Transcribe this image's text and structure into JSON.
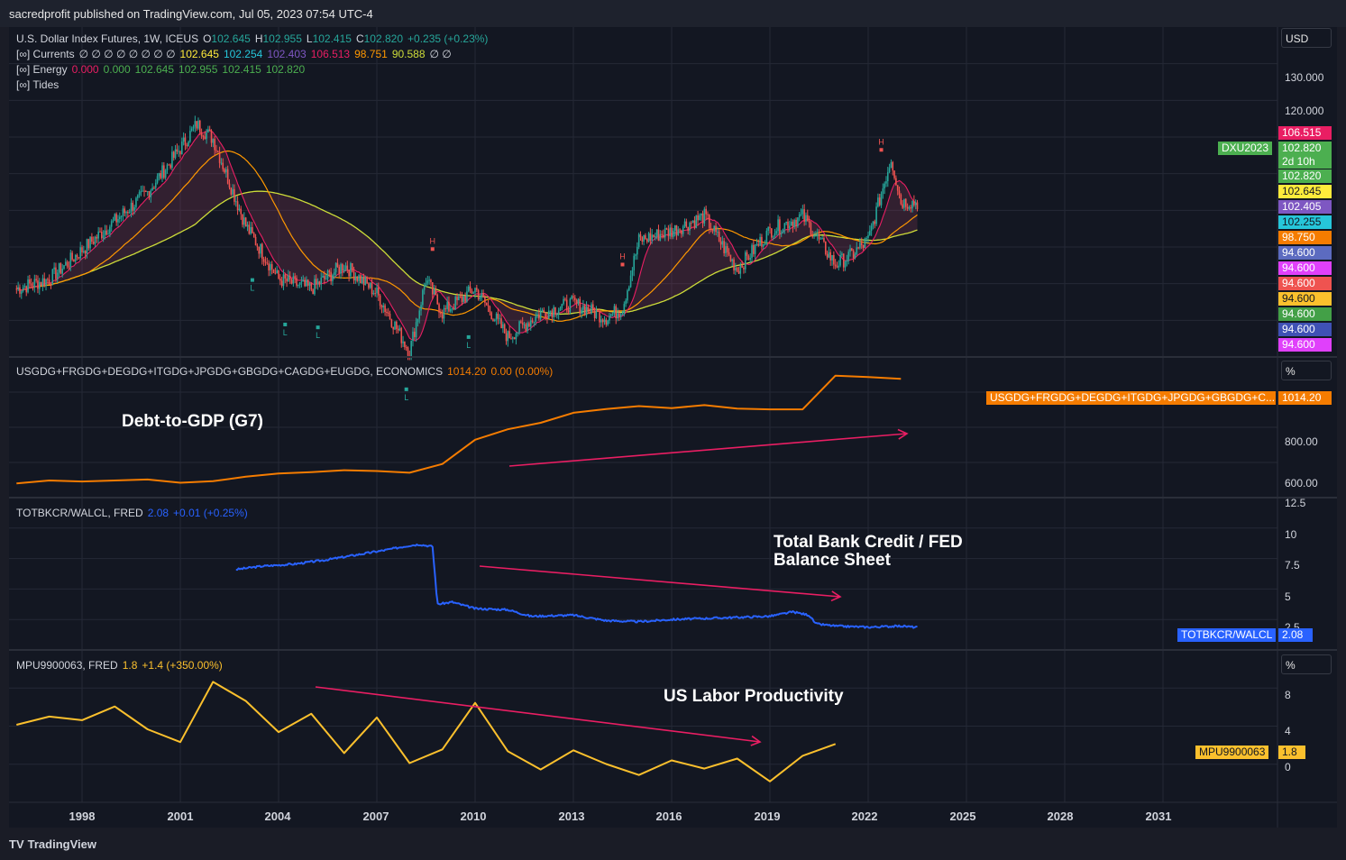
{
  "header": {
    "publisher": "sacredprofit published on TradingView.com, Jul 05, 2023 07:54 UTC-4"
  },
  "footer": {
    "brand": "TradingView",
    "logo": "TV"
  },
  "panes": {
    "main": {
      "symbol": "U.S. Dollar Index Futures, 1W, ICEUS",
      "ohlc": {
        "o_label": "O",
        "o": "102.645",
        "h_label": "H",
        "h": "102.955",
        "l_label": "L",
        "l": "102.415",
        "c_label": "C",
        "c": "102.820",
        "chg": "+0.235 (+0.23%)"
      },
      "currents": {
        "label": "[∞] Currents",
        "empties": "∅ ∅ ∅ ∅ ∅ ∅ ∅ ∅",
        "v1": "102.645",
        "v2": "102.254",
        "v3": "102.403",
        "v4": "106.513",
        "v5": "98.751",
        "v6": "90.588",
        "tail": "∅ ∅"
      },
      "energy": {
        "label": "[∞] Energy",
        "v1": "0.000",
        "v2": "0.000",
        "v3": "102.645",
        "v4": "102.955",
        "v5": "102.415",
        "v6": "102.820"
      },
      "tides": {
        "label": "[∞] Tides"
      },
      "currency": "USD",
      "marker_h": "H",
      "marker_l": "L"
    },
    "debt": {
      "symbol": "USGDG+FRGDG+DEGDG+ITGDG+JPGDG+GBGDG+CAGDG+EUGDG, ECONOMICS",
      "value": "1014.20",
      "chg": "0.00 (0.00%)",
      "unit": "%",
      "badge_name": "USGDG+FRGDG+DEGDG+ITGDG+JPGDG+GBGDG+C...",
      "annotation": "Debt-to-GDP (G7)"
    },
    "credit": {
      "symbol": "TOTBKCR/WALCL, FRED",
      "value": "2.08",
      "chg": "+0.01 (+0.25%)",
      "badge_name": "TOTBKCR/WALCL",
      "annotation_line1": "Total Bank Credit / FED",
      "annotation_line2": "Balance Sheet"
    },
    "mpu": {
      "symbol": "MPU9900063, FRED",
      "value": "1.8",
      "chg": "+1.4 (+350.00%)",
      "unit": "%",
      "badge_name": "MPU9900063",
      "annotation": "US Labor Productivity"
    }
  },
  "price_scale": {
    "main_ticks": [
      "130.000",
      "120.000"
    ],
    "debt_ticks": [
      "800.00",
      "600.00"
    ],
    "credit_ticks": [
      "12.5",
      "10",
      "7.5",
      "5",
      "2.5"
    ],
    "mpu_ticks": [
      "8",
      "4",
      "0"
    ],
    "badges": [
      {
        "label": "106.515",
        "color": "#e91e63"
      },
      {
        "label": "102.820",
        "color": "#4caf50"
      },
      {
        "label": "2d 10h",
        "color": "#4caf50"
      },
      {
        "label": "102.820",
        "color": "#4caf50"
      },
      {
        "label": "102.645",
        "color": "#ffeb3b"
      },
      {
        "label": "102.405",
        "color": "#7e57c2"
      },
      {
        "label": "102.255",
        "color": "#26c6da"
      },
      {
        "label": "98.750",
        "color": "#f57c00"
      },
      {
        "label": "94.600",
        "color": "#5c6bc0"
      },
      {
        "label": "94.600",
        "color": "#e040fb"
      },
      {
        "label": "94.600",
        "color": "#ef5350"
      },
      {
        "label": "94.600",
        "color": "#fbc02d"
      },
      {
        "label": "94.600",
        "color": "#43a047"
      },
      {
        "label": "94.600",
        "color": "#3f51b5"
      },
      {
        "label": "94.600",
        "color": "#e040fb"
      }
    ],
    "contract_label": "DXU2023"
  },
  "colors": {
    "bg": "#131722",
    "grid": "#242936",
    "up": "#26a69a",
    "down": "#ef5350",
    "debt": "#f57c00",
    "credit": "#2962ff",
    "mpu": "#fbc02d",
    "arrow": "#e91e63"
  },
  "chart_data": [
    {
      "type": "line",
      "title": "U.S. Dollar Index Futures, 1W, ICEUS",
      "x": [
        1996.0,
        1997.0,
        1998.0,
        1999.0,
        2000.0,
        2001.0,
        2001.5,
        2002.0,
        2003.0,
        2004.0,
        2005.0,
        2006.0,
        2007.0,
        2008.0,
        2008.5,
        2009.0,
        2010.0,
        2011.0,
        2012.0,
        2013.0,
        2014.0,
        2014.5,
        2015.0,
        2016.0,
        2017.0,
        2018.0,
        2019.0,
        2020.0,
        2021.0,
        2021.5,
        2022.0,
        2022.7,
        2023.0,
        2023.5
      ],
      "series": [
        {
          "values": [
            85.0,
            87.0,
            93.0,
            99.0,
            105.0,
            114.0,
            119.0,
            116.0,
            98.0,
            87.0,
            85.0,
            90.0,
            84.0,
            72.0,
            87.0,
            80.0,
            85.0,
            75.0,
            80.0,
            82.0,
            79.0,
            81.0,
            95.0,
            97.0,
            100.0,
            89.0,
            97.0,
            100.0,
            90.0,
            92.0,
            95.0,
            112.0,
            103.0,
            102.8
          ]
        }
      ],
      "ylim": [
        72.0,
        138.0
      ],
      "x_ticks": [
        "1998",
        "2001",
        "2004",
        "2007",
        "2010",
        "2013",
        "2016",
        "2019",
        "2022",
        "2025",
        "2028",
        "2031"
      ]
    },
    {
      "type": "line",
      "title": "USGDG+FRGDG+DEGDG+ITGDG+JPGDG+GBGDG+CAGDG+EUGDG, ECONOMICS",
      "x": [
        1996,
        1997,
        1998,
        1999,
        2000,
        2001,
        2002,
        2003,
        2004,
        2005,
        2006,
        2007,
        2008,
        2009,
        2010,
        2011,
        2012,
        2013,
        2014,
        2015,
        2016,
        2017,
        2018,
        2019,
        2020,
        2021,
        2022,
        2023
      ],
      "series": [
        {
          "name": "USGDG+FRGDG+DEGDG+ITGDG+JPGDG+GBGDG+CAGDG+EUGDG",
          "values": [
            595,
            607,
            603,
            607,
            611,
            598,
            604,
            622,
            635,
            640,
            648,
            645,
            638,
            673,
            770,
            812,
            838,
            878,
            893,
            905,
            897,
            909,
            895,
            892,
            892,
            1027,
            1021,
            1014.2
          ]
        }
      ],
      "ylim": [
        560,
        1080
      ]
    },
    {
      "type": "line",
      "title": "TOTBKCR/WALCL, FRED",
      "x": [
        2002.7,
        2003.5,
        2004.5,
        2005.5,
        2006.5,
        2007.3,
        2008.0,
        2008.3,
        2008.7,
        2008.85,
        2009.3,
        2010.0,
        2011.0,
        2011.7,
        2013.0,
        2014.0,
        2015.0,
        2016.0,
        2017.0,
        2018.0,
        2019.0,
        2019.7,
        2020.2,
        2020.4,
        2021.0,
        2022.0,
        2023.0,
        2023.5
      ],
      "series": [
        {
          "name": "TOTBKCR/WALCL",
          "values": [
            7.4,
            7.7,
            7.9,
            8.3,
            8.8,
            9.2,
            9.6,
            9.7,
            9.5,
            4.2,
            4.4,
            3.8,
            3.7,
            3.1,
            3.2,
            2.7,
            2.6,
            2.8,
            2.9,
            3.0,
            3.1,
            3.5,
            3.2,
            2.4,
            2.2,
            2.1,
            2.2,
            2.08
          ]
        }
      ],
      "ylim": [
        0.5,
        13.5
      ]
    },
    {
      "type": "line",
      "title": "MPU9900063, FRED",
      "x": [
        1996,
        1997,
        1998,
        1999,
        2000,
        2001,
        2002,
        2003,
        2004,
        2005,
        2006,
        2007,
        2008,
        2009,
        2010,
        2011,
        2012,
        2013,
        2014,
        2015,
        2016,
        2017,
        2018,
        2019,
        2020,
        2021
      ],
      "series": [
        {
          "name": "MPU9900063",
          "values": [
            3.9,
            4.8,
            4.4,
            5.9,
            3.4,
            2.0,
            8.6,
            6.5,
            3.1,
            5.1,
            0.8,
            4.7,
            -0.3,
            1.2,
            6.3,
            1.0,
            -1.0,
            1.1,
            -0.4,
            -1.6,
            0.0,
            -0.9,
            0.2,
            -2.3,
            0.5,
            1.8
          ]
        }
      ],
      "ylim": [
        -4.0,
        11.5
      ]
    }
  ]
}
